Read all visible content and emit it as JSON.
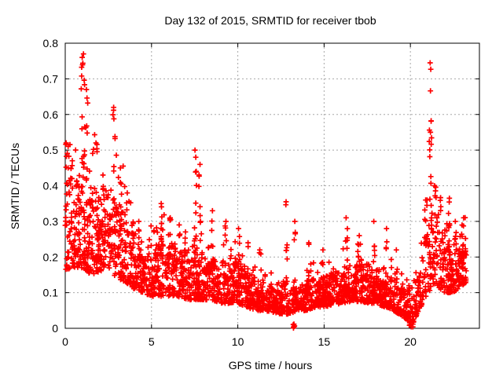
{
  "chart_data": {
    "type": "scatter",
    "title": "Day 132 of 2015, SRMTID for receiver tbob",
    "xlabel": "GPS time / hours",
    "ylabel": "SRMTID / TECUs",
    "xlim": [
      0,
      24
    ],
    "ylim": [
      0,
      0.8
    ],
    "xticks": [
      0,
      5,
      10,
      15,
      20
    ],
    "xtick_labels": [
      "0",
      "5",
      "10",
      "15",
      "20"
    ],
    "yticks": [
      0,
      0.1,
      0.2,
      0.3,
      0.4,
      0.5,
      0.6,
      0.7,
      0.8
    ],
    "ytick_labels": [
      "0",
      "0.1",
      "0.2",
      "0.3",
      "0.4",
      "0.5",
      "0.6",
      "0.7",
      "0.8"
    ],
    "grid": true,
    "legend": "none",
    "marker": "plus",
    "marker_color": "#ff0000",
    "grid_color": "#a8a8a8",
    "axis_color": "#000000",
    "background_color": "#ffffff",
    "x_data_range": [
      0,
      23.25
    ],
    "points_per_hour": 112,
    "seed": 1327,
    "baseline_envelope": [
      [
        0,
        0.16,
        0.44
      ],
      [
        0.5,
        0.17,
        0.43
      ],
      [
        1,
        0.17,
        0.45
      ],
      [
        1.5,
        0.15,
        0.37
      ],
      [
        2,
        0.16,
        0.36
      ],
      [
        2.5,
        0.17,
        0.34
      ],
      [
        3,
        0.14,
        0.34
      ],
      [
        3.5,
        0.13,
        0.31
      ],
      [
        4,
        0.11,
        0.27
      ],
      [
        4.5,
        0.1,
        0.23
      ],
      [
        5,
        0.09,
        0.23
      ],
      [
        5.5,
        0.09,
        0.26
      ],
      [
        6,
        0.09,
        0.25
      ],
      [
        6.5,
        0.09,
        0.23
      ],
      [
        7,
        0.08,
        0.21
      ],
      [
        7.5,
        0.08,
        0.23
      ],
      [
        8,
        0.08,
        0.21
      ],
      [
        8.5,
        0.08,
        0.21
      ],
      [
        9,
        0.07,
        0.19
      ],
      [
        9.5,
        0.07,
        0.18
      ],
      [
        10,
        0.07,
        0.17
      ],
      [
        10.5,
        0.06,
        0.15
      ],
      [
        11,
        0.05,
        0.14
      ],
      [
        11.5,
        0.05,
        0.13
      ],
      [
        12,
        0.045,
        0.12
      ],
      [
        12.5,
        0.04,
        0.13
      ],
      [
        13,
        0.04,
        0.12
      ],
      [
        13.5,
        0.05,
        0.12
      ],
      [
        14,
        0.05,
        0.13
      ],
      [
        14.5,
        0.06,
        0.14
      ],
      [
        15,
        0.06,
        0.15
      ],
      [
        15.5,
        0.065,
        0.16
      ],
      [
        16,
        0.07,
        0.17
      ],
      [
        16.5,
        0.075,
        0.18
      ],
      [
        17,
        0.075,
        0.18
      ],
      [
        17.5,
        0.07,
        0.17
      ],
      [
        18,
        0.07,
        0.17
      ],
      [
        18.5,
        0.06,
        0.16
      ],
      [
        19,
        0.05,
        0.15
      ],
      [
        19.5,
        0.035,
        0.13
      ],
      [
        20,
        0.015,
        0.11
      ],
      [
        20.3,
        0.03,
        0.13
      ],
      [
        20.7,
        0.07,
        0.2
      ],
      [
        21,
        0.1,
        0.3
      ],
      [
        21.5,
        0.12,
        0.31
      ],
      [
        22,
        0.1,
        0.29
      ],
      [
        22.5,
        0.1,
        0.23
      ],
      [
        23,
        0.12,
        0.26
      ],
      [
        23.25,
        0.13,
        0.22
      ]
    ],
    "spikes": [
      [
        0.12,
        0.1,
        0.52,
        9
      ],
      [
        0.35,
        0.06,
        0.47,
        5
      ],
      [
        1.03,
        0.1,
        0.77,
        18
      ],
      [
        1.25,
        0.07,
        0.67,
        9
      ],
      [
        1.8,
        0.05,
        0.52,
        4
      ],
      [
        2.2,
        0.06,
        0.43,
        6
      ],
      [
        2.82,
        0.07,
        0.62,
        11
      ],
      [
        3.25,
        0.07,
        0.45,
        8
      ],
      [
        3.6,
        0.05,
        0.38,
        5
      ],
      [
        4.3,
        0.05,
        0.3,
        4
      ],
      [
        5.6,
        0.06,
        0.35,
        7
      ],
      [
        6.1,
        0.06,
        0.31,
        6
      ],
      [
        6.6,
        0.05,
        0.29,
        4
      ],
      [
        7.55,
        0.05,
        0.5,
        9
      ],
      [
        7.78,
        0.05,
        0.46,
        7
      ],
      [
        8.5,
        0.06,
        0.33,
        6
      ],
      [
        9.3,
        0.05,
        0.3,
        5
      ],
      [
        10.05,
        0.06,
        0.28,
        6
      ],
      [
        10.6,
        0.04,
        0.24,
        4
      ],
      [
        11.3,
        0.05,
        0.22,
        4
      ],
      [
        12.8,
        0.06,
        0.355,
        10
      ],
      [
        13.3,
        0.05,
        0.3,
        5
      ],
      [
        14.1,
        0.05,
        0.24,
        5
      ],
      [
        14.9,
        0.04,
        0.22,
        4
      ],
      [
        16.3,
        0.06,
        0.31,
        8
      ],
      [
        17,
        0.05,
        0.26,
        5
      ],
      [
        17.9,
        0.05,
        0.3,
        6
      ],
      [
        18.6,
        0.04,
        0.28,
        4
      ],
      [
        19.2,
        0.04,
        0.22,
        4
      ],
      [
        20.9,
        0.07,
        0.36,
        9
      ],
      [
        21.15,
        0.08,
        0.745,
        16
      ],
      [
        21.45,
        0.06,
        0.4,
        6
      ],
      [
        22.25,
        0.06,
        0.365,
        8
      ],
      [
        22.6,
        0.04,
        0.3,
        4
      ],
      [
        23.05,
        0.06,
        0.31,
        6
      ]
    ],
    "low_clusters": [
      [
        13.25,
        0.04,
        0,
        0.012,
        7
      ],
      [
        19.95,
        0.18,
        0,
        0.035,
        7
      ],
      [
        20.15,
        0.04,
        0,
        0.02,
        5
      ]
    ]
  }
}
